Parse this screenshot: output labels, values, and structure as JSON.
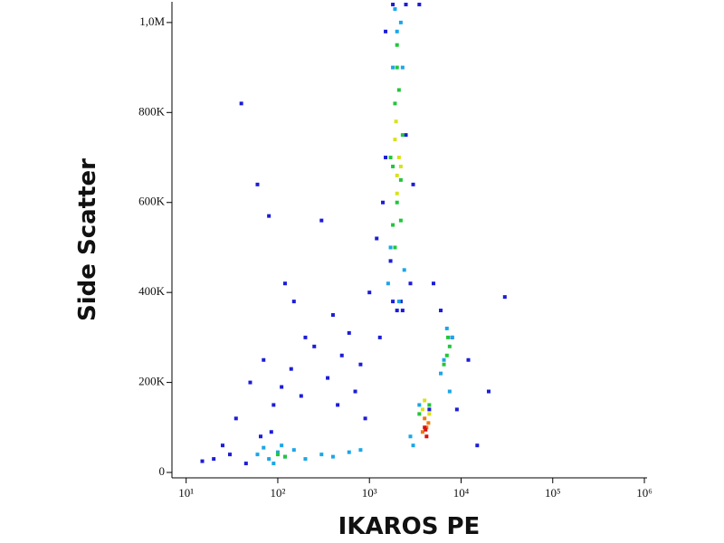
{
  "chart_data": {
    "type": "scatter",
    "xlabel": "IKAROS PE",
    "ylabel": "Side Scatter",
    "xscale": "log",
    "xlim": [
      7,
      1070000
    ],
    "ylim": [
      -12000,
      1046000
    ],
    "xticks": [
      {
        "value": 10,
        "label": "10¹"
      },
      {
        "value": 100,
        "label": "10²"
      },
      {
        "value": 1000,
        "label": "10³"
      },
      {
        "value": 10000,
        "label": "10⁴"
      },
      {
        "value": 100000,
        "label": "10⁵"
      },
      {
        "value": 1000000,
        "label": "10⁶"
      }
    ],
    "yticks": [
      0,
      {
        "value": 200000,
        "label": "200K"
      },
      {
        "value": 400000,
        "label": "400K"
      },
      {
        "value": 600000,
        "label": "600K"
      },
      {
        "value": 800000,
        "label": "800K"
      },
      {
        "value": 1000000,
        "label": "1,0M"
      }
    ],
    "series": [
      {
        "color": "#1c1cd8",
        "x": [
          40,
          60,
          80,
          120,
          150,
          200,
          300,
          400,
          500,
          600,
          800,
          1000,
          1200,
          1500,
          1800,
          2500,
          3000,
          3500,
          5000,
          6000,
          8000,
          12000,
          20000,
          30000,
          25,
          35,
          50,
          70,
          90,
          110,
          140,
          180,
          250,
          350,
          450,
          700,
          900,
          1300,
          1700,
          2200,
          2800,
          4500,
          9000,
          15000,
          1500,
          2500,
          1800,
          2000,
          2300,
          1400,
          15,
          20,
          30,
          45,
          65,
          85
        ],
        "y": [
          820000,
          640000,
          570000,
          420000,
          380000,
          300000,
          560000,
          350000,
          260000,
          310000,
          240000,
          400000,
          520000,
          980000,
          1040000,
          1040000,
          640000,
          1040000,
          420000,
          360000,
          300000,
          250000,
          180000,
          390000,
          60000,
          120000,
          200000,
          250000,
          150000,
          190000,
          230000,
          170000,
          280000,
          210000,
          150000,
          180000,
          120000,
          300000,
          470000,
          380000,
          420000,
          140000,
          140000,
          60000,
          700000,
          750000,
          380000,
          360000,
          360000,
          600000,
          25000,
          30000,
          40000,
          20000,
          80000,
          90000
        ]
      },
      {
        "color": "#1aa6e8",
        "x": [
          60,
          80,
          100,
          120,
          150,
          200,
          300,
          400,
          600,
          800,
          90,
          110,
          70,
          1600,
          1800,
          2000,
          2200,
          2400,
          1700,
          2100,
          2300,
          1900,
          6000,
          7000,
          8000,
          6500,
          7500,
          3000,
          3500,
          2800
        ],
        "y": [
          40000,
          30000,
          45000,
          35000,
          50000,
          30000,
          40000,
          35000,
          45000,
          50000,
          20000,
          60000,
          55000,
          420000,
          900000,
          980000,
          1000000,
          450000,
          500000,
          380000,
          900000,
          1030000,
          220000,
          320000,
          300000,
          250000,
          180000,
          60000,
          150000,
          80000
        ]
      },
      {
        "color": "#22c63a",
        "x": [
          1800,
          2000,
          2200,
          1900,
          2100,
          1700,
          2000,
          2300,
          1800,
          2000,
          2200,
          1900,
          7000,
          7500,
          6500,
          7200,
          100,
          120,
          4500,
          3500
        ],
        "y": [
          550000,
          600000,
          650000,
          820000,
          850000,
          700000,
          900000,
          750000,
          680000,
          950000,
          560000,
          500000,
          260000,
          280000,
          240000,
          300000,
          40000,
          35000,
          150000,
          130000
        ]
      },
      {
        "color": "#d8e21a",
        "x": [
          2000,
          2100,
          1900,
          2000,
          2200,
          1950,
          4000,
          3800,
          4500
        ],
        "y": [
          620000,
          700000,
          740000,
          660000,
          680000,
          780000,
          160000,
          140000,
          130000
        ]
      },
      {
        "color": "#f07a10",
        "x": [
          4000,
          4200,
          3800,
          4400
        ],
        "y": [
          120000,
          100000,
          90000,
          110000
        ]
      },
      {
        "color": "#d81010",
        "x": [
          4000,
          4200,
          4100
        ],
        "y": [
          100000,
          80000,
          95000
        ]
      }
    ]
  }
}
